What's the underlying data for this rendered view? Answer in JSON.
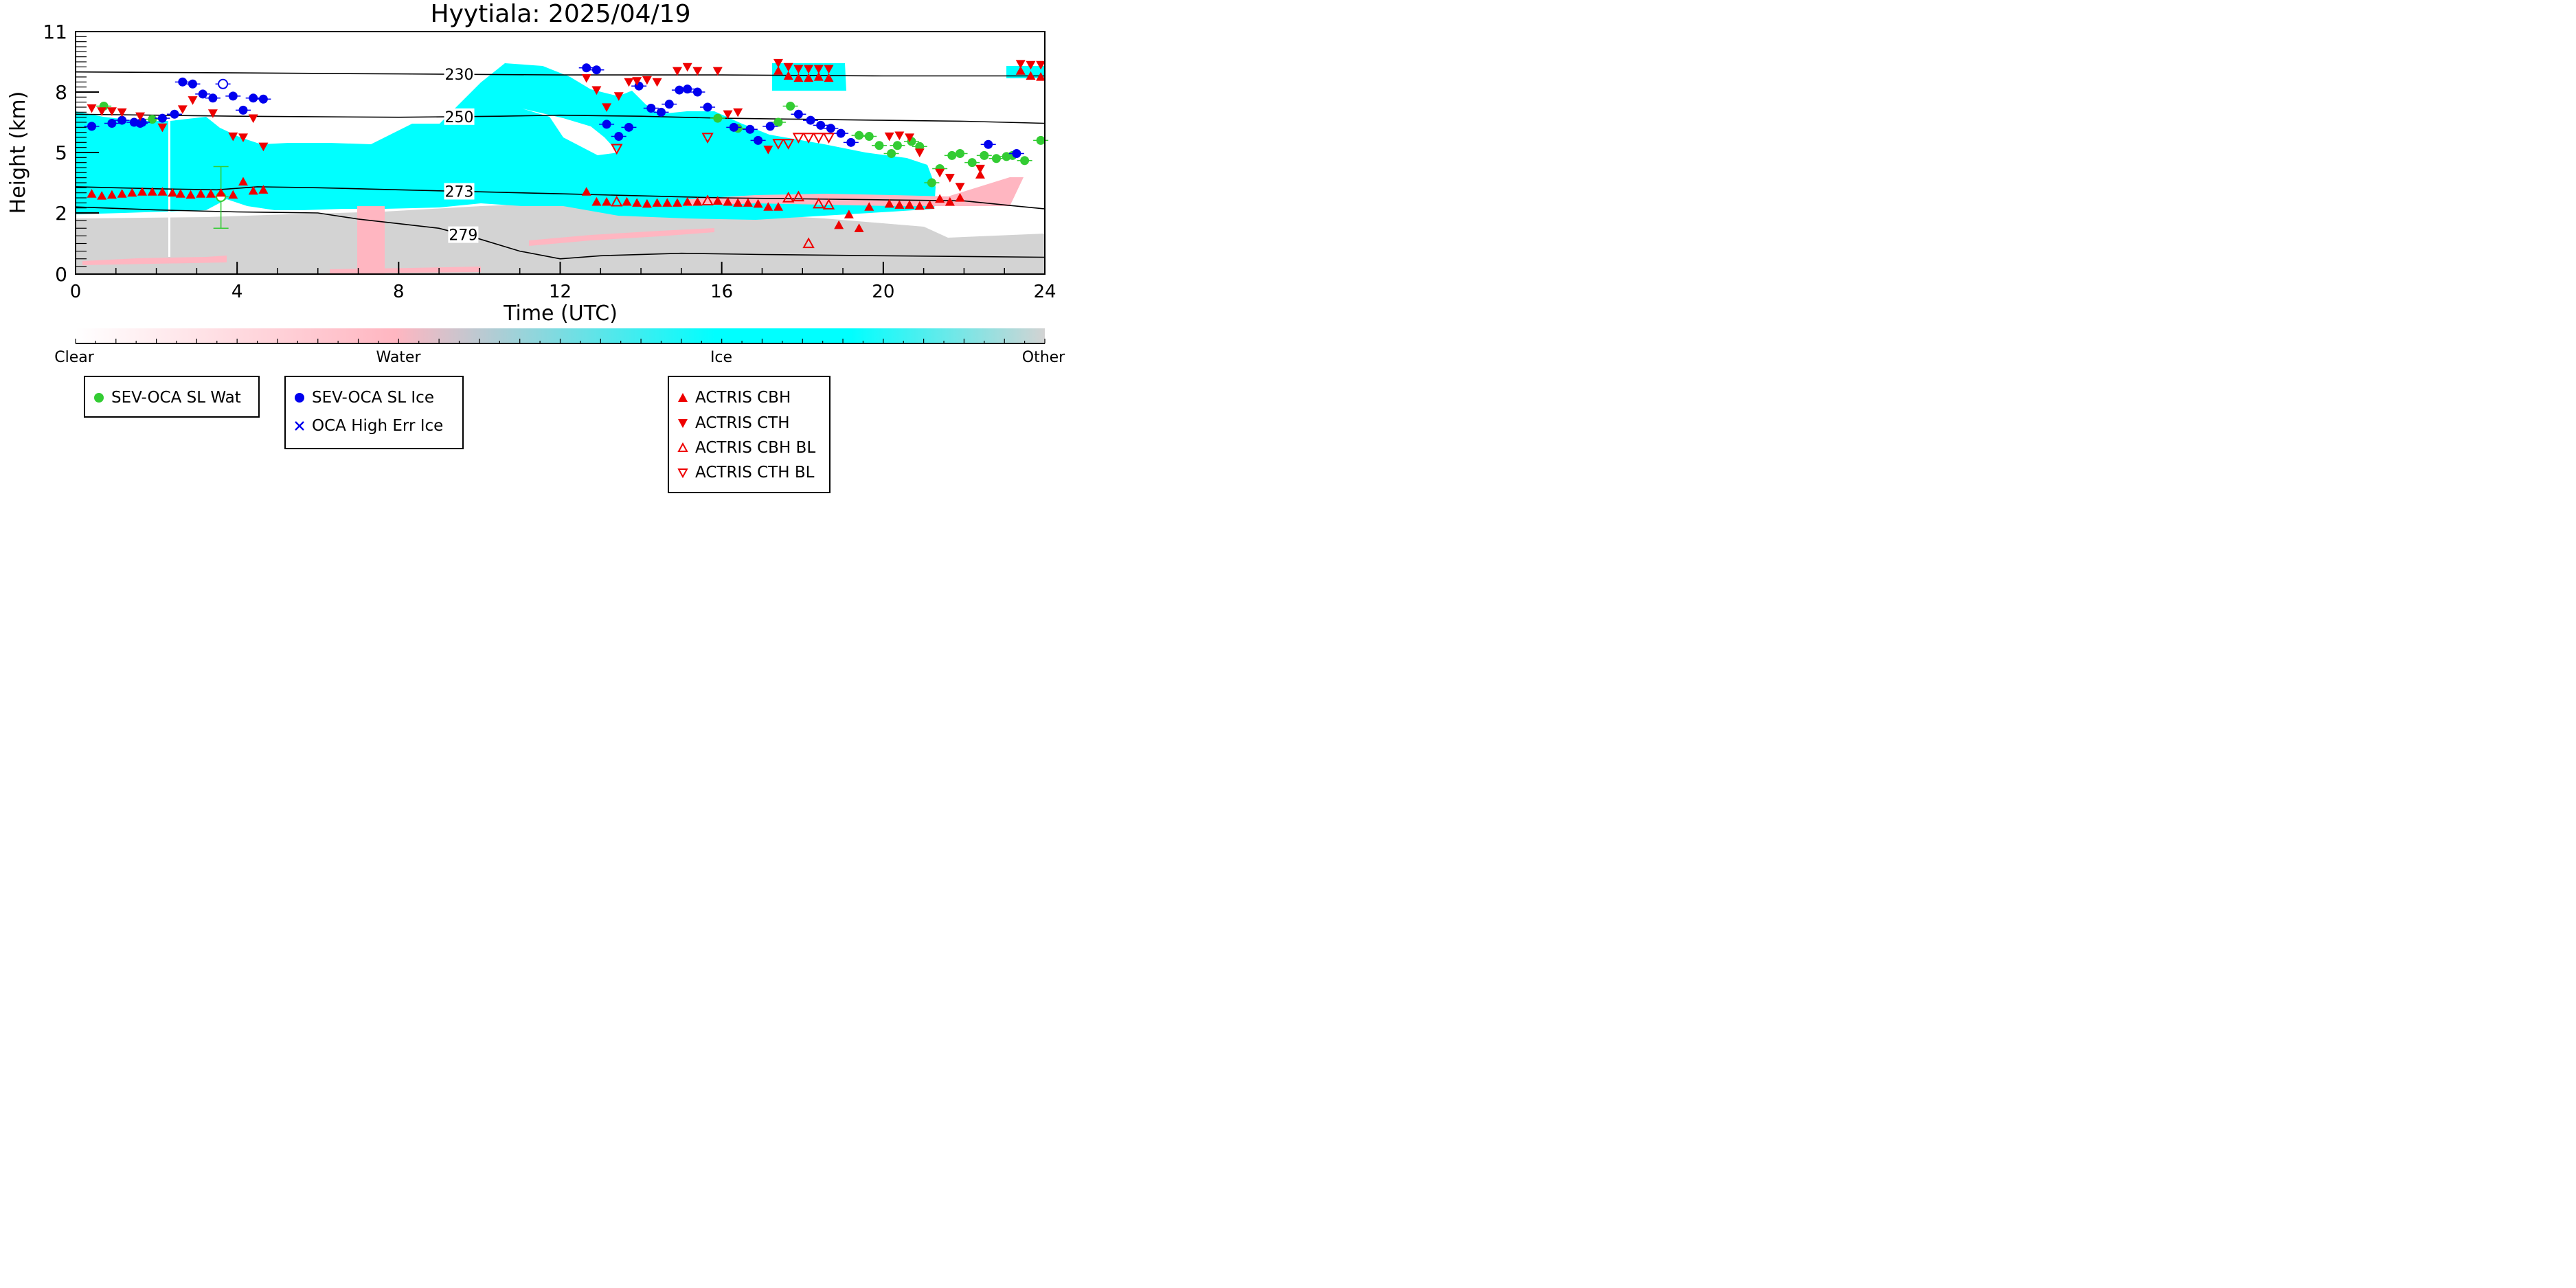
{
  "chart_data": {
    "type": "scatter",
    "title": "Hyytiala: 2025/04/19",
    "xlabel": "Time (UTC)",
    "ylabel": "Height (km)",
    "xlim": [
      0,
      24
    ],
    "ylim": [
      0,
      11
    ],
    "x_ticks": [
      0,
      4,
      8,
      12,
      16,
      20,
      24
    ],
    "y_ticks": [
      {
        "value": 0,
        "label": "0"
      },
      {
        "value": 2,
        "label": "2"
      },
      {
        "value": 5,
        "label": "5"
      },
      {
        "value": 8,
        "label": "8"
      },
      {
        "value": 11,
        "label": "11"
      }
    ],
    "colorbar": {
      "labels": [
        "Clear",
        "Water",
        "Ice",
        "Other"
      ],
      "colors": [
        "#ffffff",
        "#ffb6c1",
        "#00ffff",
        "#d3d3d3"
      ]
    },
    "isotherms": [
      {
        "label": "230",
        "label_x": 9.5,
        "points": [
          [
            0,
            9.0
          ],
          [
            4,
            8.95
          ],
          [
            8,
            8.9
          ],
          [
            12,
            8.85
          ],
          [
            16,
            8.85
          ],
          [
            20,
            8.8
          ],
          [
            24,
            8.8
          ]
        ]
      },
      {
        "label": "250",
        "label_x": 9.5,
        "points": [
          [
            0,
            6.9
          ],
          [
            2,
            6.85
          ],
          [
            4,
            6.8
          ],
          [
            8,
            6.75
          ],
          [
            10.5,
            6.8
          ],
          [
            12,
            6.85
          ],
          [
            14,
            6.8
          ],
          [
            16,
            6.7
          ],
          [
            18,
            6.65
          ],
          [
            20,
            6.6
          ],
          [
            22,
            6.55
          ],
          [
            24,
            6.45
          ]
        ]
      },
      {
        "label": "273",
        "label_x": 9.5,
        "points": [
          [
            0,
            3.3
          ],
          [
            2,
            3.2
          ],
          [
            3.5,
            3.15
          ],
          [
            4.5,
            3.3
          ],
          [
            6,
            3.25
          ],
          [
            8,
            3.15
          ],
          [
            10,
            3.05
          ],
          [
            12,
            2.95
          ],
          [
            14,
            2.85
          ],
          [
            16,
            2.75
          ],
          [
            18,
            2.7
          ],
          [
            20,
            2.65
          ],
          [
            22,
            2.6
          ],
          [
            23,
            2.4
          ],
          [
            24,
            2.2
          ]
        ]
      },
      {
        "label": "279",
        "label_x": 9.6,
        "points": [
          [
            0,
            2.3
          ],
          [
            2,
            2.15
          ],
          [
            4,
            2.05
          ],
          [
            6,
            2.0
          ],
          [
            7,
            1.8
          ],
          [
            8,
            1.65
          ],
          [
            9,
            1.5
          ],
          [
            10,
            1.15
          ],
          [
            11,
            0.75
          ],
          [
            12,
            0.5
          ],
          [
            13,
            0.6
          ],
          [
            15,
            0.68
          ],
          [
            17,
            0.64
          ],
          [
            20,
            0.6
          ],
          [
            24,
            0.55
          ]
        ]
      }
    ],
    "series": [
      {
        "name": "SEV-OCA SL Wat",
        "color": "#33cc33",
        "marker": "circle",
        "points": [
          [
            0.7,
            7.3
          ],
          [
            1.9,
            6.65
          ],
          [
            15.9,
            6.7
          ],
          [
            16.4,
            6.2
          ],
          [
            17.4,
            6.5
          ],
          [
            17.7,
            7.3
          ],
          [
            19.4,
            5.85
          ],
          [
            19.65,
            5.8
          ],
          [
            19.9,
            5.35
          ],
          [
            20.2,
            4.95
          ],
          [
            20.35,
            5.35
          ],
          [
            20.7,
            5.55
          ],
          [
            20.9,
            5.3
          ],
          [
            21.2,
            3.5
          ],
          [
            21.4,
            4.2
          ],
          [
            21.7,
            4.85
          ],
          [
            21.9,
            4.95
          ],
          [
            22.2,
            4.5
          ],
          [
            22.5,
            4.85
          ],
          [
            22.8,
            4.7
          ],
          [
            23.05,
            4.8
          ],
          [
            23.2,
            4.85
          ],
          [
            23.5,
            4.6
          ],
          [
            23.9,
            5.6
          ]
        ],
        "err_points": [
          [
            3.6,
            2.8,
            4.3,
            1.5
          ]
        ],
        "open_points": [
          [
            3.6,
            2.8
          ]
        ]
      },
      {
        "name": "SEV-OCA SL Ice",
        "color": "#0000ee",
        "marker": "circle",
        "points": [
          [
            0.4,
            6.3
          ],
          [
            0.9,
            6.45
          ],
          [
            1.15,
            6.6
          ],
          [
            1.45,
            6.5
          ],
          [
            1.6,
            6.45
          ],
          [
            1.65,
            6.5
          ],
          [
            2.15,
            6.7
          ],
          [
            2.45,
            6.9
          ],
          [
            2.65,
            8.5
          ],
          [
            2.9,
            8.4
          ],
          [
            3.15,
            7.9
          ],
          [
            3.4,
            7.7
          ],
          [
            3.9,
            7.8
          ],
          [
            4.15,
            7.1
          ],
          [
            4.4,
            7.7
          ],
          [
            4.65,
            7.65
          ],
          [
            12.65,
            9.2
          ],
          [
            12.9,
            9.1
          ],
          [
            13.15,
            6.4
          ],
          [
            13.45,
            5.8
          ],
          [
            13.7,
            6.25
          ],
          [
            13.95,
            8.3
          ],
          [
            14.25,
            7.2
          ],
          [
            14.5,
            7.0
          ],
          [
            14.7,
            7.4
          ],
          [
            14.95,
            8.1
          ],
          [
            15.15,
            8.15
          ],
          [
            15.4,
            8.0
          ],
          [
            15.65,
            7.25
          ],
          [
            16.3,
            6.25
          ],
          [
            16.7,
            6.15
          ],
          [
            16.9,
            5.6
          ],
          [
            17.2,
            6.3
          ],
          [
            17.9,
            6.9
          ],
          [
            18.2,
            6.6
          ],
          [
            18.45,
            6.35
          ],
          [
            18.7,
            6.2
          ],
          [
            18.95,
            5.95
          ],
          [
            19.2,
            5.5
          ],
          [
            22.6,
            5.4
          ],
          [
            23.3,
            4.95
          ]
        ],
        "open_points": [
          [
            3.65,
            8.4
          ]
        ]
      },
      {
        "name": "ACTRIS CBH",
        "color": "#ee0000",
        "marker": "triangle-up",
        "points": [
          [
            0.4,
            2.95
          ],
          [
            0.65,
            2.85
          ],
          [
            0.9,
            2.9
          ],
          [
            1.15,
            2.95
          ],
          [
            1.4,
            3.0
          ],
          [
            1.65,
            3.05
          ],
          [
            1.9,
            3.05
          ],
          [
            2.15,
            3.05
          ],
          [
            2.4,
            3.0
          ],
          [
            2.6,
            2.95
          ],
          [
            2.85,
            2.9
          ],
          [
            3.1,
            2.95
          ],
          [
            3.35,
            2.95
          ],
          [
            3.6,
            3.0
          ],
          [
            3.9,
            2.9
          ],
          [
            4.15,
            3.55
          ],
          [
            4.4,
            3.1
          ],
          [
            4.65,
            3.15
          ],
          [
            12.65,
            3.05
          ],
          [
            12.9,
            2.55
          ],
          [
            13.15,
            2.55
          ],
          [
            13.65,
            2.55
          ],
          [
            13.9,
            2.5
          ],
          [
            14.15,
            2.45
          ],
          [
            14.4,
            2.5
          ],
          [
            14.65,
            2.5
          ],
          [
            14.9,
            2.5
          ],
          [
            15.15,
            2.55
          ],
          [
            15.4,
            2.55
          ],
          [
            15.9,
            2.6
          ],
          [
            16.15,
            2.55
          ],
          [
            16.4,
            2.5
          ],
          [
            16.65,
            2.5
          ],
          [
            16.9,
            2.45
          ],
          [
            17.15,
            2.3
          ],
          [
            17.4,
            2.3
          ],
          [
            17.4,
            9.05
          ],
          [
            17.65,
            8.8
          ],
          [
            17.9,
            8.7
          ],
          [
            18.15,
            8.7
          ],
          [
            18.4,
            8.75
          ],
          [
            18.65,
            8.7
          ],
          [
            18.9,
            1.6
          ],
          [
            19.15,
            1.95
          ],
          [
            19.4,
            1.5
          ],
          [
            19.65,
            2.3
          ],
          [
            20.15,
            2.45
          ],
          [
            20.4,
            2.4
          ],
          [
            20.65,
            2.4
          ],
          [
            20.9,
            2.35
          ],
          [
            21.15,
            2.4
          ],
          [
            21.4,
            2.7
          ],
          [
            21.65,
            2.55
          ],
          [
            21.9,
            2.75
          ],
          [
            22.4,
            3.9
          ],
          [
            23.4,
            9.05
          ],
          [
            23.65,
            8.8
          ],
          [
            23.9,
            8.75
          ]
        ]
      },
      {
        "name": "ACTRIS CTH",
        "color": "#ee0000",
        "marker": "triangle-down",
        "points": [
          [
            0.4,
            7.2
          ],
          [
            0.65,
            7.05
          ],
          [
            0.9,
            7.05
          ],
          [
            1.15,
            7.0
          ],
          [
            1.6,
            6.8
          ],
          [
            2.15,
            6.25
          ],
          [
            2.65,
            7.15
          ],
          [
            2.9,
            7.6
          ],
          [
            3.4,
            6.95
          ],
          [
            3.9,
            5.8
          ],
          [
            4.15,
            5.75
          ],
          [
            4.4,
            6.7
          ],
          [
            4.65,
            5.3
          ],
          [
            12.65,
            8.7
          ],
          [
            12.9,
            8.1
          ],
          [
            13.15,
            7.25
          ],
          [
            13.45,
            7.8
          ],
          [
            13.7,
            8.5
          ],
          [
            13.9,
            8.55
          ],
          [
            14.15,
            8.6
          ],
          [
            14.4,
            8.5
          ],
          [
            14.9,
            9.05
          ],
          [
            15.15,
            9.25
          ],
          [
            15.4,
            9.05
          ],
          [
            15.9,
            9.05
          ],
          [
            16.15,
            6.9
          ],
          [
            16.4,
            7.0
          ],
          [
            17.15,
            5.15
          ],
          [
            17.4,
            9.45
          ],
          [
            17.65,
            9.25
          ],
          [
            17.9,
            9.15
          ],
          [
            18.15,
            9.15
          ],
          [
            18.4,
            9.15
          ],
          [
            18.65,
            9.15
          ],
          [
            20.15,
            5.8
          ],
          [
            20.4,
            5.85
          ],
          [
            20.65,
            5.75
          ],
          [
            20.9,
            5.0
          ],
          [
            21.4,
            4.0
          ],
          [
            21.65,
            3.75
          ],
          [
            21.9,
            3.3
          ],
          [
            22.4,
            4.2
          ],
          [
            23.4,
            9.4
          ],
          [
            23.65,
            9.35
          ],
          [
            23.9,
            9.35
          ]
        ]
      },
      {
        "name": "ACTRIS CBH BL",
        "color": "#ee0000",
        "marker": "triangle-up-open",
        "points": [
          [
            13.4,
            2.55
          ],
          [
            15.65,
            2.6
          ],
          [
            17.65,
            2.75
          ],
          [
            17.9,
            2.8
          ],
          [
            18.15,
            1.0
          ],
          [
            18.4,
            2.45
          ],
          [
            18.65,
            2.4
          ]
        ]
      },
      {
        "name": "ACTRIS CTH BL",
        "color": "#ee0000",
        "marker": "triangle-down-open",
        "points": [
          [
            13.4,
            5.2
          ],
          [
            15.65,
            5.75
          ],
          [
            17.4,
            5.45
          ],
          [
            17.65,
            5.45
          ],
          [
            17.9,
            5.75
          ],
          [
            18.15,
            5.75
          ],
          [
            18.4,
            5.75
          ],
          [
            18.65,
            5.75
          ]
        ]
      },
      {
        "name": "OCA High Err Ice",
        "color": "#0000ee",
        "marker": "x",
        "points": []
      }
    ]
  }
}
